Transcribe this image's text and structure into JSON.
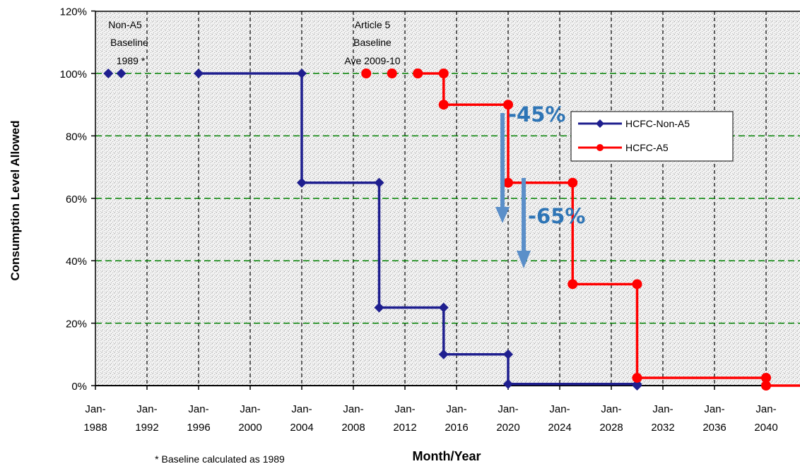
{
  "chart_data": {
    "type": "line",
    "step": true,
    "xlabel": "Month/Year",
    "ylabel": "Consumption Level Allowed",
    "xlim": [
      1988,
      2043
    ],
    "ylim": [
      0,
      120
    ],
    "y_ticks": [
      "0%",
      "20%",
      "40%",
      "60%",
      "80%",
      "100%",
      "120%"
    ],
    "y_tick_values": [
      0,
      20,
      40,
      60,
      80,
      100,
      120
    ],
    "x_tick_values": [
      1988,
      1992,
      1996,
      2000,
      2004,
      2008,
      2012,
      2016,
      2020,
      2024,
      2028,
      2032,
      2036,
      2040
    ],
    "x_tick_top": [
      "Jan-",
      "Jan-",
      "Jan-",
      "Jan-",
      "Jan-",
      "Jan-",
      "Jan-",
      "Jan-",
      "Jan-",
      "Jan-",
      "Jan-",
      "Jan-",
      "Jan-",
      "Jan-"
    ],
    "x_tick_bottom": [
      "1988",
      "1992",
      "1996",
      "2000",
      "2004",
      "2008",
      "2012",
      "2016",
      "2020",
      "2024",
      "2028",
      "2032",
      "2036",
      "2040"
    ],
    "grid": true,
    "legend_position": "top-right",
    "series": [
      {
        "name": "HCFC-Non-A5",
        "color": "#1F1F8F",
        "points": [
          [
            1989,
            100
          ],
          [
            1990,
            100
          ]
        ],
        "step_points": [
          [
            1996,
            100
          ],
          [
            2004,
            100
          ],
          [
            2004,
            65
          ],
          [
            2010,
            65
          ],
          [
            2010,
            25
          ],
          [
            2015,
            25
          ],
          [
            2015,
            10
          ],
          [
            2020,
            10
          ],
          [
            2020,
            0.5
          ],
          [
            2030,
            0.5
          ],
          [
            2030,
            0
          ]
        ]
      },
      {
        "name": "HCFC-A5",
        "color": "#FF0000",
        "points": [
          [
            2009,
            100
          ],
          [
            2011,
            100
          ],
          [
            2013,
            100
          ]
        ],
        "step_points": [
          [
            2013,
            100
          ],
          [
            2015,
            100
          ],
          [
            2015,
            90
          ],
          [
            2020,
            90
          ],
          [
            2020,
            65
          ],
          [
            2025,
            65
          ],
          [
            2025,
            32.5
          ],
          [
            2030,
            32.5
          ],
          [
            2030,
            2.5
          ],
          [
            2040,
            2.5
          ],
          [
            2040,
            0
          ],
          [
            2043,
            0
          ]
        ]
      }
    ],
    "annotations": {
      "non_a5_baseline": [
        "Non-A5",
        "Baseline",
        "1989 *"
      ],
      "a5_baseline": [
        "Article 5",
        "Baseline",
        "Ave 2009-10"
      ],
      "reduction_45": "-45%",
      "reduction_65": "-65%",
      "footnote": "* Baseline calculated as 1989"
    },
    "accent_color": "#5B8FC9",
    "grid_color_horizontal": "#008000",
    "grid_color_vertical": "#000000"
  }
}
